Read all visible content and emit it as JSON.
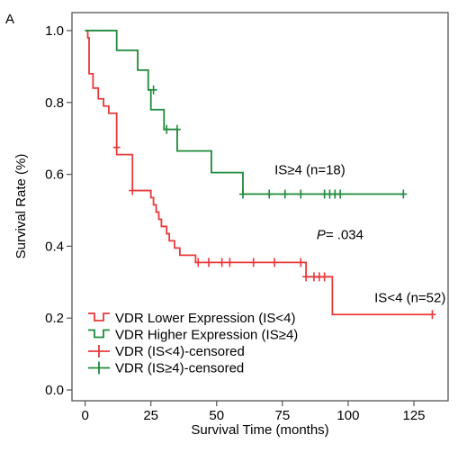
{
  "panel_label": "A",
  "chart_data": {
    "type": "line",
    "subtype": "kaplan-meier-step",
    "xlabel": "Survival Time (months)",
    "ylabel": "Survival Rate (%)",
    "xlim": [
      -5,
      138
    ],
    "ylim": [
      -0.03,
      1.05
    ],
    "xticks": [
      0,
      25,
      50,
      75,
      100,
      125
    ],
    "yticks": [
      0.0,
      0.2,
      0.4,
      0.6,
      0.8,
      1.0
    ],
    "xtick_labels": [
      "0",
      "25",
      "50",
      "75",
      "100",
      "125"
    ],
    "ytick_labels": [
      "0.0",
      "0.2",
      "0.4",
      "0.6",
      "0.8",
      "1.0"
    ],
    "grid": false,
    "legend_position": "bottom-left",
    "series": [
      {
        "name": "VDR Lower Expression (IS<4)",
        "color": "#e8393b",
        "steps": [
          [
            0,
            1.0
          ],
          [
            1,
            0.98
          ],
          [
            1.5,
            0.88
          ],
          [
            3,
            0.84
          ],
          [
            5,
            0.81
          ],
          [
            7,
            0.79
          ],
          [
            9,
            0.77
          ],
          [
            12,
            0.655
          ],
          [
            18,
            0.555
          ],
          [
            21,
            0.555
          ],
          [
            25,
            0.535
          ],
          [
            26,
            0.515
          ],
          [
            27,
            0.495
          ],
          [
            28,
            0.475
          ],
          [
            29,
            0.455
          ],
          [
            31,
            0.435
          ],
          [
            32,
            0.415
          ],
          [
            34,
            0.395
          ],
          [
            36,
            0.375
          ],
          [
            42,
            0.355
          ],
          [
            84,
            0.315
          ],
          [
            94,
            0.21
          ],
          [
            132,
            0.21
          ]
        ],
        "censored": [
          [
            12,
            0.675
          ],
          [
            18,
            0.555
          ],
          [
            43,
            0.355
          ],
          [
            47,
            0.355
          ],
          [
            52,
            0.355
          ],
          [
            55,
            0.355
          ],
          [
            64,
            0.355
          ],
          [
            72,
            0.355
          ],
          [
            82,
            0.355
          ],
          [
            84,
            0.315
          ],
          [
            87,
            0.315
          ],
          [
            89,
            0.315
          ],
          [
            91,
            0.315
          ],
          [
            132,
            0.21
          ]
        ]
      },
      {
        "name": "VDR Higher Expression (IS≥4)",
        "color": "#1f8a3c",
        "steps": [
          [
            0,
            1.0
          ],
          [
            12,
            0.945
          ],
          [
            20,
            0.89
          ],
          [
            24,
            0.835
          ],
          [
            25,
            0.78
          ],
          [
            30,
            0.725
          ],
          [
            35,
            0.665
          ],
          [
            48,
            0.605
          ],
          [
            60,
            0.545
          ],
          [
            121,
            0.545
          ]
        ],
        "censored": [
          [
            26,
            0.835
          ],
          [
            31,
            0.725
          ],
          [
            35,
            0.725
          ],
          [
            60,
            0.545
          ],
          [
            70,
            0.545
          ],
          [
            76,
            0.545
          ],
          [
            82,
            0.545
          ],
          [
            91,
            0.545
          ],
          [
            93,
            0.545
          ],
          [
            95,
            0.545
          ],
          [
            97,
            0.545
          ],
          [
            121,
            0.545
          ]
        ]
      }
    ],
    "annotations": [
      {
        "text": "IS≥4 (n=18)",
        "x": 72,
        "y": 0.6
      },
      {
        "text": "P",
        "italic": true,
        "x": 88,
        "y": 0.42,
        "suffix": "= .034"
      },
      {
        "text": "IS<4 (n=52)",
        "x": 110,
        "y": 0.245
      }
    ],
    "legend": [
      {
        "label": "VDR Lower Expression (IS<4)",
        "color": "#e8393b",
        "symbol": "step"
      },
      {
        "label": "VDR Higher Expression (IS≥4)",
        "color": "#1f8a3c",
        "symbol": "step"
      },
      {
        "label": "VDR (IS<4)-censored",
        "color": "#e8393b",
        "symbol": "cross"
      },
      {
        "label": "VDR (IS≥4)-censored",
        "color": "#1f8a3c",
        "symbol": "cross"
      }
    ]
  }
}
